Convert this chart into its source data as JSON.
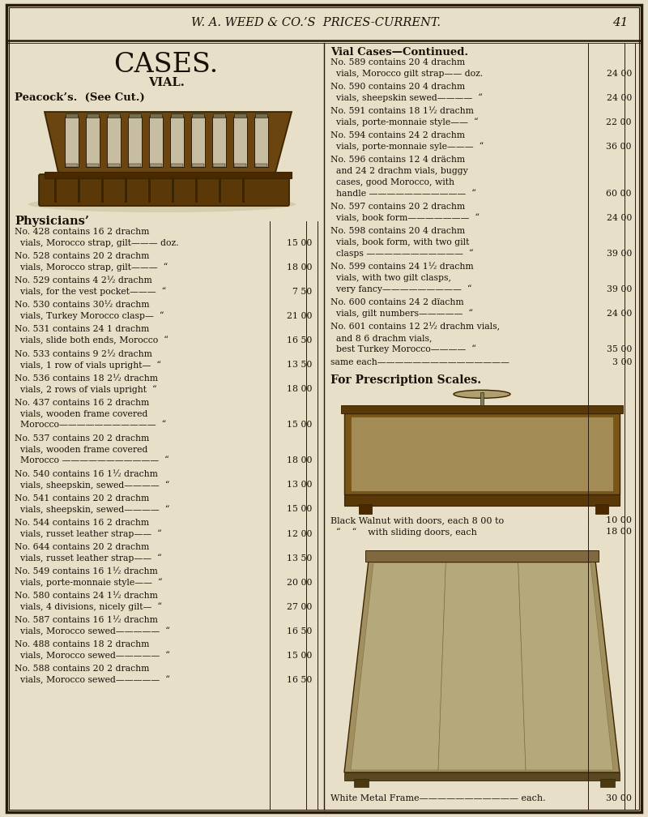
{
  "bg_color": "#e8dfc8",
  "header_text": "W. A. WEED & CO.’S  PRICES-CURRENT.",
  "page_number": "41",
  "left_title": "CASES.",
  "left_subtitle": "VIAL.",
  "peacocks_label": "Peacock’s.  (See Cut.)",
  "physicians_header": "Physicians’",
  "left_items": [
    {
      "lines": [
        "No. 428 contains 16 2 drachm",
        "  vials, Morocco strap, gilt——— doz."
      ],
      "price": "15 00"
    },
    {
      "lines": [
        "No. 528 contains 20 2 drachm",
        "  vials, Morocco strap, gilt———  “"
      ],
      "price": "18 00"
    },
    {
      "lines": [
        "No. 529 contains 4 2½ drachm",
        "  vials, for the vest pocket———  “"
      ],
      "price": "7 50"
    },
    {
      "lines": [
        "No. 530 contains 30½ drachm",
        "  vials, Turkey Morocco clasp—  “"
      ],
      "price": "21 00"
    },
    {
      "lines": [
        "No. 531 contains 24 1 drachm",
        "  vials, slide both ends, Morocco  “"
      ],
      "price": "16 50"
    },
    {
      "lines": [
        "No. 533 contains 9 2½ drachm",
        "  vials, 1 row of vials upright—  “"
      ],
      "price": "13 50"
    },
    {
      "lines": [
        "No. 536 contains 18 2½ drachm",
        "  vials, 2 rows of vials upright  “"
      ],
      "price": "18 00"
    },
    {
      "lines": [
        "No. 437 contains 16 2 drachm",
        "  vials, wooden frame covered",
        "  Morocco———————————  “"
      ],
      "price": "15 00"
    },
    {
      "lines": [
        "No. 537 contains 20 2 drachm",
        "  vials, wooden frame covered",
        "  Morocco ———————————  “"
      ],
      "price": "18 00"
    },
    {
      "lines": [
        "No. 540 contains 16 1½ drachm",
        "  vials, sheepskin, sewed————  “"
      ],
      "price": "13 00"
    },
    {
      "lines": [
        "No. 541 contains 20 2 drachm",
        "  vials, sheepskin, sewed————  “"
      ],
      "price": "15 00"
    },
    {
      "lines": [
        "No. 544 contains 16 2 drachm",
        "  vials, russet leather strap——  “"
      ],
      "price": "12 00"
    },
    {
      "lines": [
        "No. 644 contains 20 2 drachm",
        "  vials, russet leather strap——  “"
      ],
      "price": "13 50"
    },
    {
      "lines": [
        "No. 549 contains 16 1½ drachm",
        "  vials, porte-monnaie style——  “"
      ],
      "price": "20 00"
    },
    {
      "lines": [
        "No. 580 contains 24 1½ drachm",
        "  vials, 4 divisions, nicely gilt—  “"
      ],
      "price": "27 00"
    },
    {
      "lines": [
        "No. 587 contains 16 1½ drachm",
        "  vials, Morocco sewed—————  “"
      ],
      "price": "16 50"
    },
    {
      "lines": [
        "No. 488 contains 18 2 drachm",
        "  vials, Morocco sewed—————  “"
      ],
      "price": "15 00"
    },
    {
      "lines": [
        "No. 588 contains 20 2 drachm",
        "  vials, Morocco sewed—————  “"
      ],
      "price": "16 50"
    }
  ],
  "right_title": "Vial Cases—Continued.",
  "right_items": [
    {
      "lines": [
        "No. 589 contains 20 4 drachm",
        "  vials, Morocco gilt strap—— doz."
      ],
      "price": "24 00"
    },
    {
      "lines": [
        "No. 590 contains 20 4 drachm",
        "  vials, sheepskin sewed————  “"
      ],
      "price": "24 00"
    },
    {
      "lines": [
        "No. 591 contains 18 1½ drachm",
        "  vials, porte-monnaie style——  “"
      ],
      "price": "22 00"
    },
    {
      "lines": [
        "No. 594 contains 24 2 drachm",
        "  vials, porte-monnaie syle———  “"
      ],
      "price": "36 00"
    },
    {
      "lines": [
        "No. 596 contains 12 4 drächm",
        "  and 24 2 drachm vials, buggy",
        "  cases, good Morocco, with",
        "  handle ———————————  “"
      ],
      "price": "60 00"
    },
    {
      "lines": [
        "No. 597 contains 20 2 drachm",
        "  vials, book form———————  “"
      ],
      "price": "24 00"
    },
    {
      "lines": [
        "No. 598 contains 20 4 drachm",
        "  vials, book form, with two gilt",
        "  clasps ———————————  “"
      ],
      "price": "39 00"
    },
    {
      "lines": [
        "No. 599 contains 24 1½ drachm",
        "  vials, with two gilt clasps,",
        "  very fancy—————————  “"
      ],
      "price": "39 00"
    },
    {
      "lines": [
        "No. 600 contains 24 2 dïachm",
        "  vials, gilt numbers—————  “"
      ],
      "price": "24 00"
    },
    {
      "lines": [
        "No. 601 contains 12 2½ drachm vials,",
        "  and 8 6 drachm vials,",
        "  best Turkey Morocco————  “"
      ],
      "price": "35 00"
    },
    {
      "lines": [
        "same each———————————————"
      ],
      "price": "3 00"
    }
  ],
  "prescription_header": "For Prescription Scales.",
  "walnut_line1": "Black Walnut with doors, each 8 00 to",
  "walnut_price1": "10 00",
  "walnut_line2": "  “    “    with sliding doors, each",
  "walnut_price2": "18 00",
  "white_metal_line": "White Metal Frame——————————— each.",
  "white_metal_price": "30 00",
  "text_color": "#1a1008",
  "line_color": "#2a1a08",
  "img_case_color1": "#5a3a0a",
  "img_case_color2": "#8a6020",
  "vial_color": "#c8c0a0"
}
